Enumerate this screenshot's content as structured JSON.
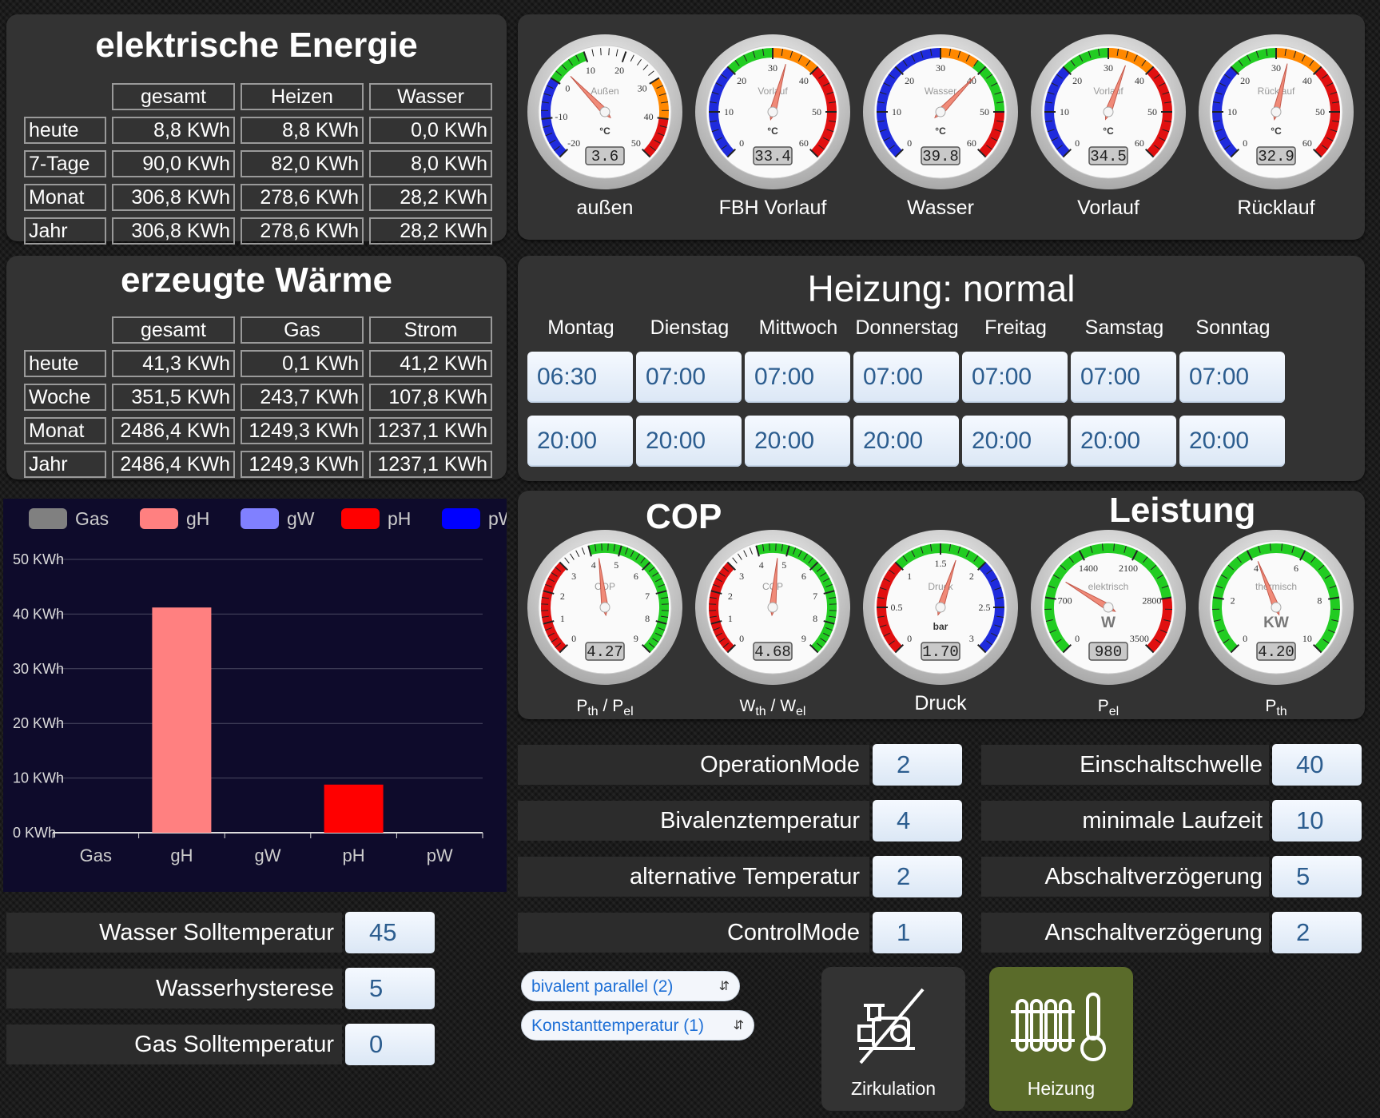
{
  "energy": {
    "title": "elektrische Energie",
    "headers": [
      "gesamt",
      "Heizen",
      "Wasser"
    ],
    "rows": [
      {
        "label": "heute",
        "values": [
          "8,8 KWh",
          "8,8 KWh",
          "0,0 KWh"
        ]
      },
      {
        "label": "7-Tage",
        "values": [
          "90,0 KWh",
          "82,0 KWh",
          "8,0 KWh"
        ]
      },
      {
        "label": "Monat",
        "values": [
          "306,8 KWh",
          "278,6 KWh",
          "28,2 KWh"
        ]
      },
      {
        "label": "Jahr",
        "values": [
          "306,8 KWh",
          "278,6 KWh",
          "28,2 KWh"
        ]
      }
    ]
  },
  "heat": {
    "title": "erzeugte Wärme",
    "headers": [
      "gesamt",
      "Gas",
      "Strom"
    ],
    "rows": [
      {
        "label": "heute",
        "values": [
          "41,3 KWh",
          "0,1 KWh",
          "41,2 KWh"
        ]
      },
      {
        "label": "Woche",
        "values": [
          "351,5 KWh",
          "243,7 KWh",
          "107,8 KWh"
        ]
      },
      {
        "label": "Monat",
        "values": [
          "2486,4 KWh",
          "1249,3 KWh",
          "1237,1 KWh"
        ]
      },
      {
        "label": "Jahr",
        "values": [
          "2486,4 KWh",
          "1249,3 KWh",
          "1237,1 KWh"
        ]
      }
    ]
  },
  "temp_gauges": [
    {
      "label": "außen",
      "face": "Außen",
      "unit": "°C",
      "value": 3.6,
      "display": "3.6",
      "min": -20,
      "max": 50,
      "ticks": [
        "-20",
        "-10",
        "0",
        "10",
        "20",
        "30",
        "40",
        "50"
      ],
      "bands": [
        [
          "#1f2bdc",
          -20,
          0
        ],
        [
          "#22cc22",
          0,
          10
        ],
        [
          "#ff8800",
          30,
          40
        ],
        [
          "#e01010",
          40,
          50
        ]
      ]
    },
    {
      "label": "FBH Vorlauf",
      "face": "Vorlauf",
      "unit": "°C",
      "value": 33.4,
      "display": "33.4",
      "min": 0,
      "max": 60,
      "ticks": [
        "0",
        "10",
        "20",
        "30",
        "40",
        "50",
        "60"
      ],
      "bands": [
        [
          "#1f2bdc",
          0,
          20
        ],
        [
          "#22cc22",
          20,
          30
        ],
        [
          "#ff8800",
          30,
          40
        ],
        [
          "#e01010",
          40,
          60
        ]
      ]
    },
    {
      "label": "Wasser",
      "face": "Wasser",
      "unit": "°C",
      "value": 39.8,
      "display": "39.8",
      "min": 0,
      "max": 60,
      "ticks": [
        "0",
        "10",
        "20",
        "30",
        "40",
        "50",
        "60"
      ],
      "bands": [
        [
          "#1f2bdc",
          0,
          30
        ],
        [
          "#ff8800",
          30,
          38
        ],
        [
          "#22cc22",
          38,
          50
        ],
        [
          "#e01010",
          50,
          60
        ]
      ]
    },
    {
      "label": "Vorlauf",
      "face": "Vorlauf",
      "unit": "°C",
      "value": 34.5,
      "display": "34.5",
      "min": 0,
      "max": 60,
      "ticks": [
        "0",
        "10",
        "20",
        "30",
        "40",
        "50",
        "60"
      ],
      "bands": [
        [
          "#1f2bdc",
          0,
          20
        ],
        [
          "#22cc22",
          20,
          30
        ],
        [
          "#ff8800",
          30,
          40
        ],
        [
          "#e01010",
          40,
          60
        ]
      ]
    },
    {
      "label": "Rücklauf",
      "face": "Rücklauf",
      "unit": "°C",
      "value": 32.9,
      "display": "32.9",
      "min": 0,
      "max": 60,
      "ticks": [
        "0",
        "10",
        "20",
        "30",
        "40",
        "50",
        "60"
      ],
      "bands": [
        [
          "#1f2bdc",
          0,
          20
        ],
        [
          "#22cc22",
          20,
          30
        ],
        [
          "#ff8800",
          30,
          40
        ],
        [
          "#e01010",
          40,
          60
        ]
      ]
    }
  ],
  "heating": {
    "title": "Heizung: normal",
    "days": [
      {
        "name": "Montag",
        "on": "06:30",
        "off": "20:00"
      },
      {
        "name": "Dienstag",
        "on": "07:00",
        "off": "20:00"
      },
      {
        "name": "Mittwoch",
        "on": "07:00",
        "off": "20:00"
      },
      {
        "name": "Donnerstag",
        "on": "07:00",
        "off": "20:00"
      },
      {
        "name": "Freitag",
        "on": "07:00",
        "off": "20:00"
      },
      {
        "name": "Samstag",
        "on": "07:00",
        "off": "20:00"
      },
      {
        "name": "Sonntag",
        "on": "07:00",
        "off": "20:00"
      }
    ]
  },
  "perf": {
    "cop_title": "COP",
    "leistung_title": "Leistung",
    "gauges": [
      {
        "label_main": "P",
        "label_sub1": "th",
        "label_mid": " / P",
        "label_sub2": "el",
        "face": "COP",
        "unit": "",
        "value": 4.27,
        "display": "4.27",
        "min": 0,
        "max": 9,
        "ticks": [
          "0",
          "1",
          "2",
          "3",
          "4",
          "5",
          "6",
          "7",
          "8",
          "9"
        ],
        "bands": [
          [
            "#e01010",
            0,
            3
          ],
          [
            "#22cc22",
            4,
            9
          ]
        ]
      },
      {
        "label_main": "W",
        "label_sub1": "th",
        "label_mid": " / W",
        "label_sub2": "el",
        "face": "COP",
        "unit": "",
        "value": 4.68,
        "display": "4.68",
        "min": 0,
        "max": 9,
        "ticks": [
          "0",
          "1",
          "2",
          "3",
          "4",
          "5",
          "6",
          "7",
          "8",
          "9"
        ],
        "bands": [
          [
            "#e01010",
            0,
            3
          ],
          [
            "#22cc22",
            4,
            9
          ]
        ]
      },
      {
        "label_main": "Druck",
        "label_sub1": "",
        "label_mid": "",
        "label_sub2": "",
        "face": "Druck",
        "unit": "bar",
        "value": 1.7,
        "display": "1.70",
        "min": 0,
        "max": 3,
        "ticks": [
          "0",
          "0.5",
          "1",
          "1.5",
          "2",
          "2.5",
          "3"
        ],
        "bands": [
          [
            "#e01010",
            0,
            1
          ],
          [
            "#22cc22",
            1,
            2
          ],
          [
            "#1f2bdc",
            2,
            3
          ]
        ]
      },
      {
        "label_main": "P",
        "label_sub1": "el",
        "label_mid": "",
        "label_sub2": "",
        "face": "elektrisch",
        "unit": "W",
        "value": 980,
        "display": "980",
        "min": 0,
        "max": 3500,
        "ticks": [
          "0",
          "700",
          "1400",
          "2100",
          "2800",
          "3500"
        ],
        "bands": [
          [
            "#22cc22",
            0,
            2800
          ],
          [
            "#e01010",
            2800,
            3500
          ]
        ]
      },
      {
        "label_main": "P",
        "label_sub1": "th",
        "label_mid": "",
        "label_sub2": "",
        "face": "thermisch",
        "unit": "KW",
        "value": 4.2,
        "display": "4.20",
        "min": 0,
        "max": 10,
        "ticks": [
          "0",
          "2",
          "4",
          "6",
          "8",
          "10"
        ],
        "bands": [
          [
            "#22cc22",
            0,
            10
          ]
        ]
      }
    ]
  },
  "chart_data": {
    "type": "bar",
    "categories": [
      "Gas",
      "gH",
      "gW",
      "pH",
      "pW"
    ],
    "values": [
      0,
      41.2,
      0,
      8.8,
      0
    ],
    "colors": [
      "#808080",
      "#ff8080",
      "#8080ff",
      "#ff0000",
      "#0000ff"
    ],
    "legend": [
      "Gas",
      "gH",
      "gW",
      "pH",
      "pW"
    ],
    "y_ticks": [
      "0 KWh",
      "10 KWh",
      "20 KWh",
      "30 KWh",
      "40 KWh",
      "50 KWh"
    ],
    "ylim": [
      0,
      50
    ],
    "grid": true,
    "legend_position": "top"
  },
  "water": {
    "rows": [
      {
        "label": "Wasser Solltemperatur",
        "value": "45"
      },
      {
        "label": "Wasserhysterese",
        "value": "5"
      },
      {
        "label": "Gas Solltemperatur",
        "value": "0"
      }
    ]
  },
  "params_left": [
    {
      "label": "OperationMode",
      "value": "2"
    },
    {
      "label": "Bivalenztemperatur",
      "value": "4"
    },
    {
      "label": "alternative Temperatur",
      "value": "2"
    },
    {
      "label": "ControlMode",
      "value": "1"
    }
  ],
  "params_right": [
    {
      "label": "Einschaltschwelle",
      "value": "40"
    },
    {
      "label": "minimale Laufzeit",
      "value": "10"
    },
    {
      "label": "Abschaltverzögerung",
      "value": "5"
    },
    {
      "label": "Anschaltverzögerung",
      "value": "2"
    }
  ],
  "selects": {
    "mode": "bivalent parallel (2)",
    "control": "Konstanttemperatur (1)"
  },
  "tiles": {
    "zirkulation": {
      "label": "Zirkulation",
      "icon": "pump-off-icon",
      "color": "#333333"
    },
    "heizung": {
      "label": "Heizung",
      "icon": "radiator-thermometer-icon",
      "color": "#5a6b2a"
    }
  }
}
